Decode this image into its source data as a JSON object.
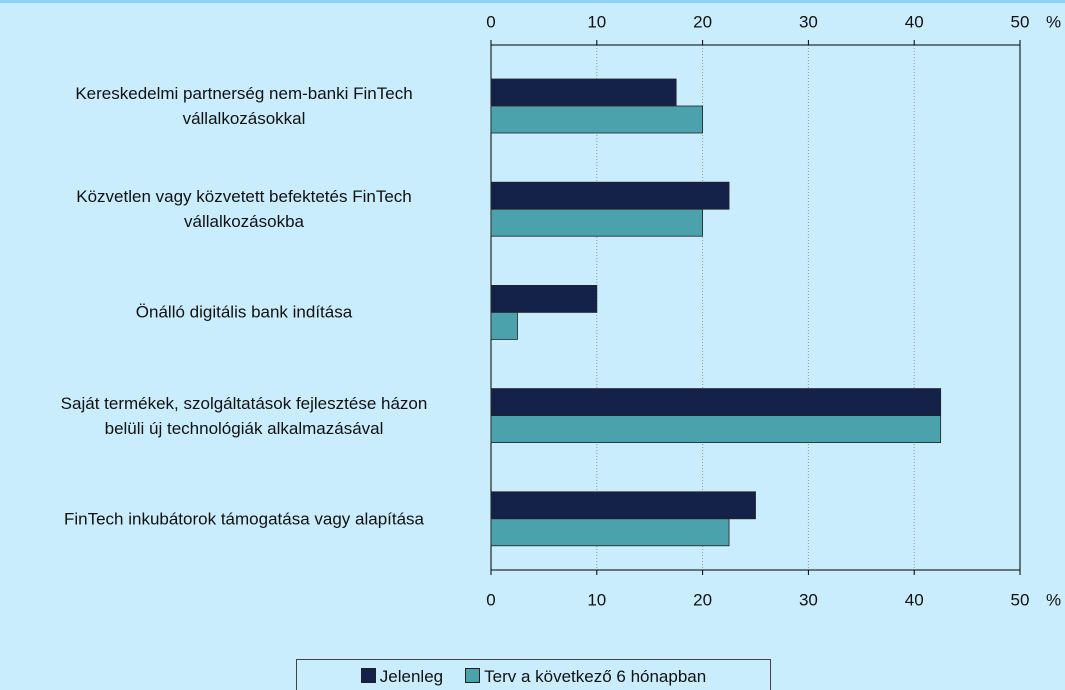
{
  "chart_data": {
    "type": "barh",
    "categories": [
      "Kereskedelmi partnerség nem-banki FinTech\nvállalkozásokkal",
      "Közvetlen vagy közvetett befektetés FinTech\nvállalkozásokba",
      "Önálló digitális bank indítása",
      "Saját termékek, szolgáltatások fejlesztése házon\nbelüli új technológiák alkalmazásával",
      "FinTech inkubátorok támogatása vagy alapítása"
    ],
    "series": [
      {
        "name": "Jelenleg",
        "color": "#14224a",
        "values": [
          17.5,
          22.5,
          10,
          42.5,
          25
        ]
      },
      {
        "name": "Terv a következő 6 hónapban",
        "color": "#4ba1ac",
        "values": [
          20,
          20,
          2.5,
          42.5,
          22.5
        ]
      }
    ],
    "xlabel": "%",
    "xlim": [
      0,
      50
    ],
    "xticks": [
      0,
      10,
      20,
      30,
      40,
      50
    ],
    "grid": true,
    "legend": "bottom"
  }
}
